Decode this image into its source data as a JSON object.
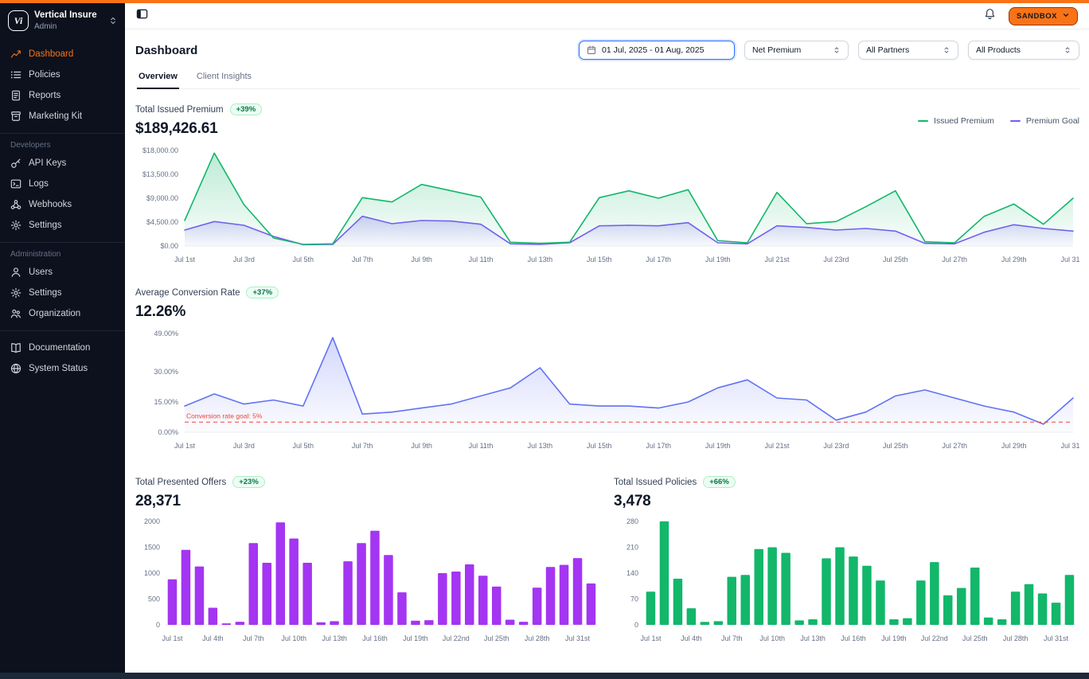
{
  "topbar": {
    "sandbox_label": "SANDBOX"
  },
  "sidebar": {
    "brand": {
      "name": "Vertical Insure",
      "role": "Admin",
      "logo_text": "Vi"
    },
    "sections": [
      {
        "label": "",
        "items": [
          {
            "label": "Dashboard",
            "icon": "dashboard-icon",
            "active": true
          },
          {
            "label": "Policies",
            "icon": "policies-icon",
            "active": false
          },
          {
            "label": "Reports",
            "icon": "reports-icon",
            "active": false
          },
          {
            "label": "Marketing Kit",
            "icon": "marketing-kit-icon",
            "active": false
          }
        ]
      },
      {
        "label": "Developers",
        "items": [
          {
            "label": "API Keys",
            "icon": "api-keys-icon",
            "active": false
          },
          {
            "label": "Logs",
            "icon": "logs-icon",
            "active": false
          },
          {
            "label": "Webhooks",
            "icon": "webhooks-icon",
            "active": false
          },
          {
            "label": "Settings",
            "icon": "settings-icon",
            "active": false
          }
        ]
      },
      {
        "label": "Administration",
        "items": [
          {
            "label": "Users",
            "icon": "users-icon",
            "active": false
          },
          {
            "label": "Settings",
            "icon": "settings-icon",
            "active": false
          },
          {
            "label": "Organization",
            "icon": "organization-icon",
            "active": false
          }
        ]
      },
      {
        "label": "",
        "items": [
          {
            "label": "Documentation",
            "icon": "documentation-icon",
            "active": false
          },
          {
            "label": "System Status",
            "icon": "system-status-icon",
            "active": false
          }
        ]
      }
    ]
  },
  "header": {
    "title": "Dashboard",
    "tabs": [
      {
        "label": "Overview",
        "active": true
      },
      {
        "label": "Client Insights",
        "active": false
      }
    ],
    "filters": {
      "date_range": "01 Jul, 2025 - 01 Aug, 2025",
      "metric": "Net Premium",
      "partners": "All Partners",
      "products": "All Products"
    }
  },
  "chart_data": [
    {
      "type": "line",
      "title": "Total Issued Premium",
      "badge": "+39%",
      "total": "$189,426.61",
      "ylim": [
        0,
        18000
      ],
      "yticks": [
        {
          "value": 18000,
          "label": "$18,000.00"
        },
        {
          "value": 13500,
          "label": "$13,500.00"
        },
        {
          "value": 9000,
          "label": "$9,000.00"
        },
        {
          "value": 4500,
          "label": "$4,500.00"
        },
        {
          "value": 0,
          "label": "$0.00"
        }
      ],
      "tick_every": 2,
      "tick_labels": [
        "Jul 1st",
        "Jul 3rd",
        "Jul 5th",
        "Jul 7th",
        "Jul 9th",
        "Jul 11th",
        "Jul 13th",
        "Jul 15th",
        "Jul 17th",
        "Jul 19th",
        "Jul 21st",
        "Jul 23rd",
        "Jul 25th",
        "Jul 27th",
        "Jul 29th",
        "Jul 31st"
      ],
      "series": [
        {
          "name": "Issued Premium",
          "color": "#12b76a",
          "values": [
            4800,
            17500,
            7800,
            1500,
            300,
            400,
            9100,
            8300,
            11600,
            10400,
            9200,
            700,
            500,
            700,
            9100,
            10400,
            9000,
            10600,
            1000,
            600,
            10100,
            4200,
            4600,
            7400,
            10400,
            800,
            600,
            5600,
            7900,
            4100,
            9000
          ]
        },
        {
          "name": "Premium Goal",
          "color": "#7a5af8",
          "values": [
            3000,
            4600,
            3900,
            1800,
            250,
            300,
            5600,
            4200,
            4800,
            4700,
            4100,
            400,
            300,
            600,
            3800,
            3900,
            3800,
            4400,
            600,
            400,
            3800,
            3500,
            3000,
            3300,
            2800,
            500,
            400,
            2600,
            4000,
            3300,
            2800
          ]
        }
      ]
    },
    {
      "type": "line",
      "title": "Average Conversion Rate",
      "badge": "+37%",
      "total": "12.26%",
      "ylim": [
        0,
        49
      ],
      "yticks": [
        {
          "value": 49,
          "label": "49.00%"
        },
        {
          "value": 30,
          "label": "30.00%"
        },
        {
          "value": 15,
          "label": "15.00%"
        },
        {
          "value": 0,
          "label": "0.00%"
        }
      ],
      "tick_every": 2,
      "tick_labels": [
        "Jul 1st",
        "Jul 3rd",
        "Jul 5th",
        "Jul 7th",
        "Jul 9th",
        "Jul 11th",
        "Jul 13th",
        "Jul 15th",
        "Jul 17th",
        "Jul 19th",
        "Jul 21st",
        "Jul 23rd",
        "Jul 25th",
        "Jul 27th",
        "Jul 29th",
        "Jul 31st"
      ],
      "goal": {
        "value": 5,
        "label": "Conversion rate goal: 5%",
        "color": "#f04438"
      },
      "series": [
        {
          "name": "Conversion Rate",
          "color": "#6172f3",
          "values": [
            13,
            19,
            14,
            16,
            13,
            47,
            9,
            10,
            12,
            14,
            18,
            22,
            32,
            14,
            13,
            13,
            12,
            15,
            22,
            26,
            17,
            16,
            6,
            10,
            18,
            21,
            17,
            13,
            10,
            4,
            17
          ]
        }
      ]
    },
    {
      "type": "bar",
      "title": "Total Presented Offers",
      "badge": "+23%",
      "total": "28,371",
      "color": "#a435f2",
      "ylim": [
        0,
        2000
      ],
      "yticks": [
        {
          "value": 2000,
          "label": "2000"
        },
        {
          "value": 1500,
          "label": "1500"
        },
        {
          "value": 1000,
          "label": "1000"
        },
        {
          "value": 500,
          "label": "500"
        },
        {
          "value": 0,
          "label": "0"
        }
      ],
      "tick_every": 3,
      "tick_labels": [
        "Jul 1st",
        "Jul 4th",
        "Jul 7th",
        "Jul 10th",
        "Jul 13th",
        "Jul 16th",
        "Jul 19th",
        "Jul 22nd",
        "Jul 25th",
        "Jul 28th",
        "Jul 31st"
      ],
      "values": [
        880,
        1450,
        1130,
        330,
        30,
        60,
        1580,
        1200,
        1980,
        1670,
        1200,
        50,
        70,
        1230,
        1580,
        1820,
        1350,
        630,
        80,
        90,
        1000,
        1030,
        1170,
        950,
        740,
        100,
        60,
        720,
        1120,
        1160,
        1290,
        800
      ]
    },
    {
      "type": "bar",
      "title": "Total Issued Policies",
      "badge": "+66%",
      "total": "3,478",
      "color": "#12b76a",
      "ylim": [
        0,
        280
      ],
      "yticks": [
        {
          "value": 280,
          "label": "280"
        },
        {
          "value": 210,
          "label": "210"
        },
        {
          "value": 140,
          "label": "140"
        },
        {
          "value": 70,
          "label": "70"
        },
        {
          "value": 0,
          "label": "0"
        }
      ],
      "tick_every": 3,
      "tick_labels": [
        "Jul 1st",
        "Jul 4th",
        "Jul 7th",
        "Jul 10th",
        "Jul 13th",
        "Jul 16th",
        "Jul 19th",
        "Jul 22nd",
        "Jul 25th",
        "Jul 28th",
        "Jul 31st"
      ],
      "values": [
        90,
        280,
        125,
        45,
        8,
        10,
        130,
        135,
        205,
        210,
        195,
        12,
        15,
        180,
        210,
        185,
        160,
        120,
        15,
        18,
        120,
        170,
        80,
        100,
        155,
        20,
        15,
        90,
        110,
        85,
        60,
        135
      ]
    }
  ],
  "colors": {
    "accent": "#f97316",
    "goal_red": "#f04438"
  }
}
